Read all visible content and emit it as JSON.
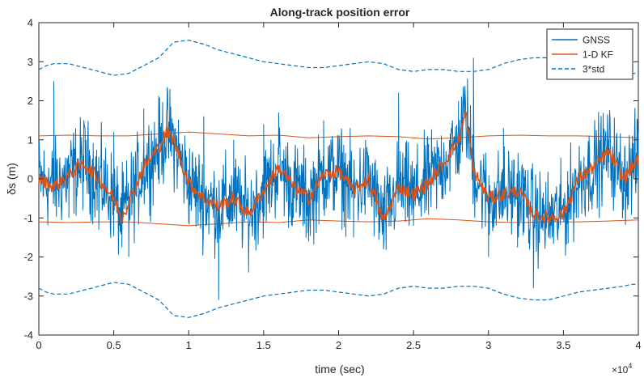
{
  "chart_data": {
    "type": "line",
    "title": "Along-track position error",
    "xlabel": "time (sec)",
    "ylabel": "δs (m)",
    "x_exponent_label": "×10",
    "x_exponent_power": "4",
    "xlim": [
      0,
      4
    ],
    "ylim": [
      -4,
      4
    ],
    "xticks": [
      0,
      0.5,
      1,
      1.5,
      2,
      2.5,
      3,
      3.5,
      4
    ],
    "xtick_labels": [
      "0",
      "0.5",
      "1",
      "1.5",
      "2",
      "2.5",
      "3",
      "3.5",
      "4"
    ],
    "yticks": [
      -4,
      -3,
      -2,
      -1,
      0,
      1,
      2,
      3,
      4
    ],
    "ytick_labels": [
      "-4",
      "-3",
      "-2",
      "-1",
      "0",
      "1",
      "2",
      "3",
      "4"
    ],
    "grid": false,
    "legend_position": "top-right",
    "series": [
      {
        "name": "GNSS",
        "color": "#0072BD",
        "style": "solid",
        "x": [
          0.0,
          0.1,
          0.2,
          0.3,
          0.4,
          0.5,
          0.6,
          0.7,
          0.8,
          0.9,
          1.0,
          1.1,
          1.2,
          1.3,
          1.4,
          1.5,
          1.6,
          1.7,
          1.8,
          1.9,
          2.0,
          2.1,
          2.2,
          2.3,
          2.4,
          2.5,
          2.6,
          2.7,
          2.8,
          2.9,
          3.0,
          3.1,
          3.2,
          3.3,
          3.4,
          3.5,
          3.6,
          3.7,
          3.8,
          3.9,
          4.0
        ],
        "y": [
          0.0,
          2.5,
          -1.0,
          1.5,
          -1.3,
          1.2,
          -2.0,
          1.8,
          2.0,
          0.5,
          -0.8,
          1.6,
          -3.1,
          1.0,
          -2.2,
          1.4,
          1.7,
          -0.5,
          -1.6,
          1.5,
          0.2,
          -1.5,
          0.6,
          -1.8,
          2.2,
          -1.2,
          0.9,
          0.5,
          1.6,
          3.1,
          -2.0,
          1.3,
          -1.5,
          -2.8,
          -1.5,
          -0.5,
          -1.0,
          -0.4,
          1.0,
          0.3,
          1.2
        ]
      },
      {
        "name": "1-D KF",
        "color": "#D95319",
        "style": "solid",
        "x": [
          0.0,
          0.1,
          0.2,
          0.3,
          0.4,
          0.5,
          0.55,
          0.6,
          0.7,
          0.8,
          0.85,
          0.9,
          1.0,
          1.1,
          1.2,
          1.3,
          1.4,
          1.5,
          1.6,
          1.7,
          1.8,
          1.9,
          2.0,
          2.1,
          2.2,
          2.3,
          2.4,
          2.5,
          2.6,
          2.7,
          2.8,
          2.85,
          2.9,
          3.0,
          3.1,
          3.2,
          3.3,
          3.4,
          3.5,
          3.6,
          3.7,
          3.8,
          3.9,
          4.0
        ],
        "y": [
          0.0,
          -0.2,
          0.1,
          0.4,
          0.0,
          -0.5,
          -1.0,
          -0.6,
          0.3,
          0.8,
          1.2,
          1.0,
          -0.1,
          -0.5,
          -0.7,
          -0.5,
          -0.9,
          -0.3,
          0.3,
          -0.2,
          -0.5,
          0.1,
          0.2,
          -0.3,
          0.0,
          -1.1,
          -0.2,
          -0.4,
          -0.1,
          0.4,
          1.0,
          1.7,
          0.2,
          -0.5,
          -0.4,
          -0.3,
          -0.9,
          -1.0,
          -0.9,
          0.0,
          0.3,
          0.7,
          0.0,
          0.5
        ]
      },
      {
        "name": "3*std",
        "color": "#0072BD",
        "style": "dashed",
        "bands": [
          {
            "x": [
              0.0,
              0.05,
              0.1,
              0.2,
              0.3,
              0.4,
              0.5,
              0.6,
              0.7,
              0.8,
              0.85,
              0.9,
              1.0,
              1.1,
              1.2,
              1.3,
              1.4,
              1.5,
              1.6,
              1.7,
              1.8,
              1.9,
              2.0,
              2.1,
              2.2,
              2.3,
              2.4,
              2.5,
              2.6,
              2.7,
              2.8,
              2.9,
              3.0,
              3.1,
              3.2,
              3.3,
              3.4,
              3.5,
              3.6,
              3.7,
              3.8,
              3.9,
              3.95,
              4.0
            ],
            "y": [
              2.8,
              2.9,
              2.95,
              2.95,
              2.85,
              2.75,
              2.65,
              2.7,
              2.9,
              3.1,
              3.3,
              3.5,
              3.55,
              3.45,
              3.3,
              3.2,
              3.1,
              3.0,
              2.95,
              2.9,
              2.85,
              2.85,
              2.9,
              2.95,
              3.0,
              2.95,
              2.8,
              2.75,
              2.8,
              2.8,
              2.75,
              2.75,
              2.8,
              2.95,
              3.05,
              3.1,
              3.1,
              3.0,
              2.9,
              2.85,
              2.8,
              2.75,
              2.7,
              2.7
            ]
          },
          {
            "x": [
              0.0,
              0.05,
              0.1,
              0.2,
              0.3,
              0.4,
              0.5,
              0.6,
              0.7,
              0.8,
              0.85,
              0.9,
              1.0,
              1.1,
              1.2,
              1.3,
              1.4,
              1.5,
              1.6,
              1.7,
              1.8,
              1.9,
              2.0,
              2.1,
              2.2,
              2.3,
              2.4,
              2.5,
              2.6,
              2.7,
              2.8,
              2.9,
              3.0,
              3.1,
              3.2,
              3.3,
              3.4,
              3.5,
              3.6,
              3.7,
              3.8,
              3.9,
              3.95,
              4.0
            ],
            "y": [
              -2.8,
              -2.9,
              -2.95,
              -2.95,
              -2.85,
              -2.75,
              -2.65,
              -2.7,
              -2.9,
              -3.1,
              -3.3,
              -3.5,
              -3.55,
              -3.45,
              -3.3,
              -3.2,
              -3.1,
              -3.0,
              -2.95,
              -2.9,
              -2.85,
              -2.85,
              -2.9,
              -2.95,
              -3.0,
              -2.95,
              -2.8,
              -2.75,
              -2.8,
              -2.8,
              -2.75,
              -2.75,
              -2.8,
              -2.95,
              -3.05,
              -3.1,
              -3.1,
              -3.0,
              -2.9,
              -2.85,
              -2.8,
              -2.75,
              -2.7,
              -2.7
            ]
          }
        ]
      }
    ],
    "kf_std_band": {
      "color": "#D95319",
      "x": [
        0.0,
        0.2,
        0.4,
        0.6,
        0.8,
        1.0,
        1.2,
        1.4,
        1.6,
        1.8,
        2.0,
        2.2,
        2.4,
        2.6,
        2.8,
        3.0,
        3.2,
        3.4,
        3.6,
        3.8,
        4.0
      ],
      "upper": [
        1.1,
        1.12,
        1.1,
        1.1,
        1.15,
        1.2,
        1.15,
        1.1,
        1.12,
        1.05,
        1.08,
        1.1,
        1.08,
        1.02,
        1.05,
        1.1,
        1.12,
        1.1,
        1.1,
        1.08,
        1.05
      ],
      "lower": [
        -1.1,
        -1.12,
        -1.1,
        -1.1,
        -1.15,
        -1.2,
        -1.15,
        -1.1,
        -1.12,
        -1.05,
        -1.08,
        -1.1,
        -1.08,
        -1.02,
        -1.05,
        -1.1,
        -1.12,
        -1.1,
        -1.1,
        -1.08,
        -1.05
      ]
    }
  }
}
